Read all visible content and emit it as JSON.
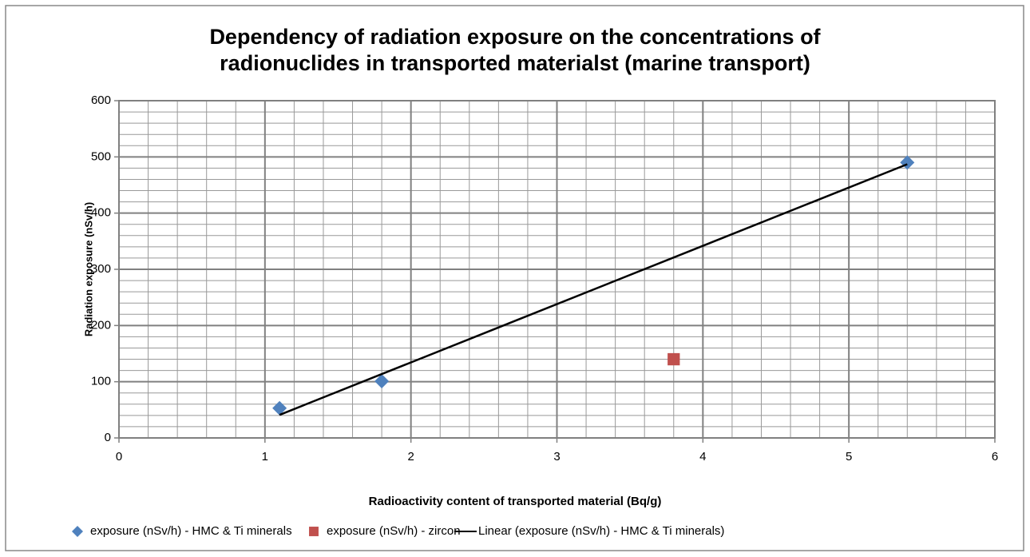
{
  "chart_data": {
    "type": "scatter",
    "title": [
      "Dependency of radiation exposure on the concentrations of",
      "radionuclides in transported materialst (marine transport)"
    ],
    "xlabel": "Radioactivity content of transported material (Bq/g)",
    "ylabel": "Radiation exposure (nSv/h)",
    "xlim": [
      0,
      6
    ],
    "xticks": [
      0,
      1,
      2,
      3,
      4,
      5,
      6
    ],
    "ylim": [
      0,
      600
    ],
    "yticks": [
      0,
      100,
      200,
      300,
      400,
      500,
      600
    ],
    "grid": true,
    "minor_grid": true,
    "legend": "bottom",
    "series": [
      {
        "name": "exposure (nSv/h) - HMC & Ti minerals",
        "color": "#4f81bd",
        "marker": "diamond",
        "x": [
          1.1,
          1.8,
          5.4
        ],
        "values": [
          53,
          101,
          490
        ]
      },
      {
        "name": "exposure (nSv/h) - zircon",
        "color": "#c0504d",
        "marker": "square",
        "x": [
          3.8
        ],
        "values": [
          140
        ]
      },
      {
        "name": "Linear (exposure (nSv/h) - HMC & Ti minerals)",
        "color": "#000000",
        "marker": "line",
        "x": [
          1.1,
          5.4
        ],
        "values": [
          41,
          487
        ]
      }
    ]
  }
}
